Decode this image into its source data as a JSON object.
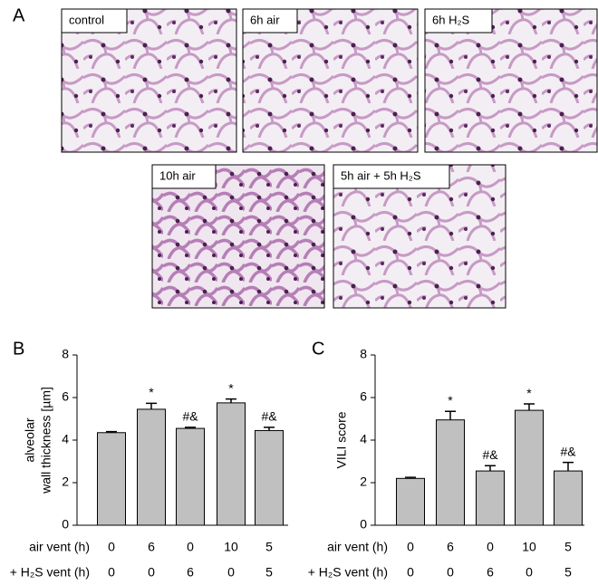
{
  "panel_labels": [
    "A",
    "B",
    "C"
  ],
  "panel_a": {
    "images": [
      "control",
      "6h air",
      "6h H₂S",
      "10h air",
      "5h air + 5h H₂S"
    ]
  },
  "chart_data": [
    {
      "type": "bar",
      "y_label": [
        "alveolar",
        "wall thickness [µm]"
      ],
      "values": [
        4.35,
        5.45,
        4.55,
        5.75,
        4.45
      ],
      "errors": [
        0.05,
        0.28,
        0.05,
        0.18,
        0.15
      ],
      "annotations": [
        null,
        "*",
        "#&",
        "*",
        "#&"
      ],
      "color": "#c0c0c0",
      "ylim": [
        0,
        8
      ],
      "yticks": [
        0,
        2,
        4,
        6,
        8
      ],
      "category_rows": [
        {
          "label": "air vent (h)",
          "values": [
            0,
            6,
            0,
            10,
            5
          ]
        },
        {
          "label": "+ H₂S vent (h)",
          "values": [
            0,
            0,
            6,
            0,
            5
          ]
        }
      ]
    },
    {
      "type": "bar",
      "y_label": [
        "VILI score"
      ],
      "values": [
        2.2,
        4.95,
        2.55,
        5.4,
        2.55
      ],
      "errors": [
        0.05,
        0.4,
        0.25,
        0.3,
        0.4
      ],
      "annotations": [
        null,
        "*",
        "#&",
        "*",
        "#&"
      ],
      "color": "#c0c0c0",
      "ylim": [
        0,
        8
      ],
      "yticks": [
        0,
        2,
        4,
        6,
        8
      ],
      "category_rows": [
        {
          "label": "air vent (h)",
          "values": [
            0,
            6,
            0,
            10,
            5
          ]
        },
        {
          "label": "+ H₂S vent (h)",
          "values": [
            0,
            0,
            6,
            0,
            5
          ]
        }
      ]
    }
  ]
}
